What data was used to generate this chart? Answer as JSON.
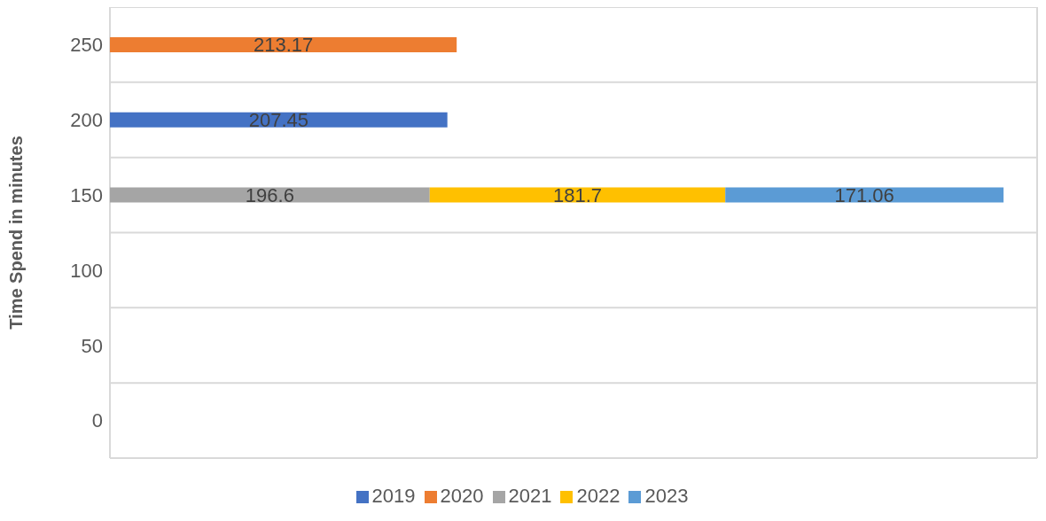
{
  "chart_data": {
    "type": "bar",
    "orientation": "horizontal",
    "stacked": true,
    "ylabel": "Time Spend in minutes",
    "categories": [
      "250",
      "200",
      "150",
      "100",
      "50",
      "0"
    ],
    "series": [
      {
        "name": "2019",
        "color": "#4472c4",
        "values": [
          null,
          207.45,
          null,
          null,
          null,
          null
        ]
      },
      {
        "name": "2020",
        "color": "#ed7d31",
        "values": [
          213.17,
          null,
          null,
          null,
          null,
          null
        ]
      },
      {
        "name": "2021",
        "color": "#a5a5a5",
        "values": [
          null,
          null,
          196.6,
          null,
          null,
          null
        ]
      },
      {
        "name": "2022",
        "color": "#ffc000",
        "values": [
          null,
          null,
          181.7,
          null,
          null,
          null
        ]
      },
      {
        "name": "2023",
        "color": "#5b9bd5",
        "values": [
          null,
          null,
          171.06,
          null,
          null,
          null
        ]
      }
    ],
    "tick_labels": "y",
    "grid": true,
    "legend": "bottom",
    "data_labels": true
  }
}
